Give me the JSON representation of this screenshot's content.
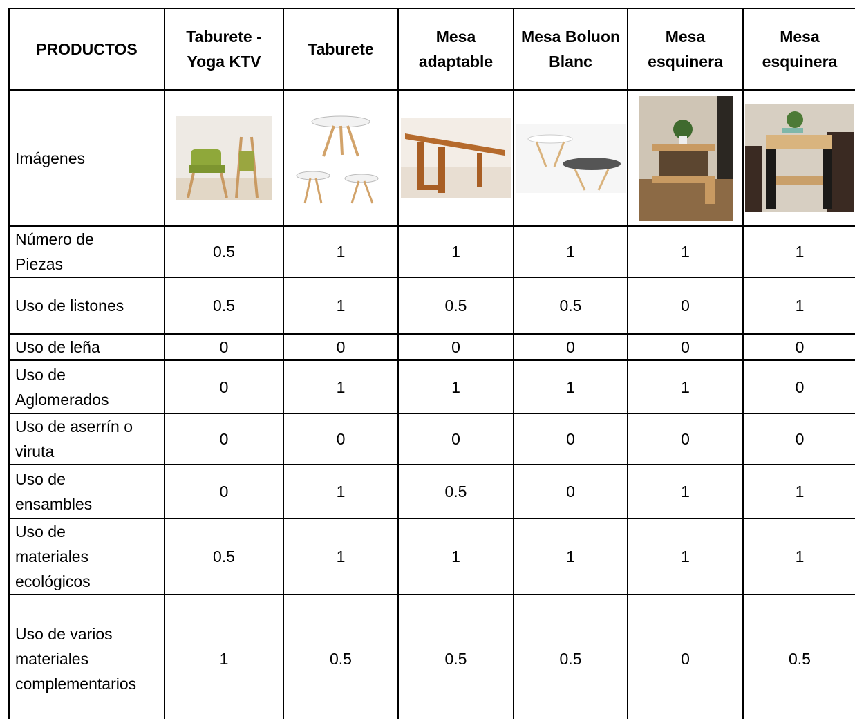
{
  "table": {
    "header": [
      "PRODUCTOS",
      "Taburete - Yoga KTV",
      "Taburete",
      "Mesa adaptable",
      "Mesa Boluon Blanc",
      "Mesa esquinera",
      "Mesa esquinera"
    ],
    "image_row_label": "Imágenes",
    "rows": [
      [
        "Número de Piezas",
        0.5,
        1,
        1,
        1,
        1,
        1
      ],
      [
        "Uso de listones",
        0.5,
        1,
        0.5,
        0.5,
        0,
        1
      ],
      [
        "Uso de leña",
        0,
        0,
        0,
        0,
        0,
        0
      ],
      [
        "Uso de Aglomerados",
        0,
        1,
        1,
        1,
        1,
        0
      ],
      [
        "Uso de aserrín o viruta",
        0,
        0,
        0,
        0,
        0,
        0
      ],
      [
        "Uso de ensambles",
        0,
        1,
        0.5,
        0,
        1,
        1
      ],
      [
        "Uso de materiales ecológicos",
        0.5,
        1,
        1,
        1,
        1,
        1
      ],
      [
        "Uso de varios materiales complementarios",
        1,
        0.5,
        0.5,
        0.5,
        0,
        0.5
      ]
    ]
  }
}
